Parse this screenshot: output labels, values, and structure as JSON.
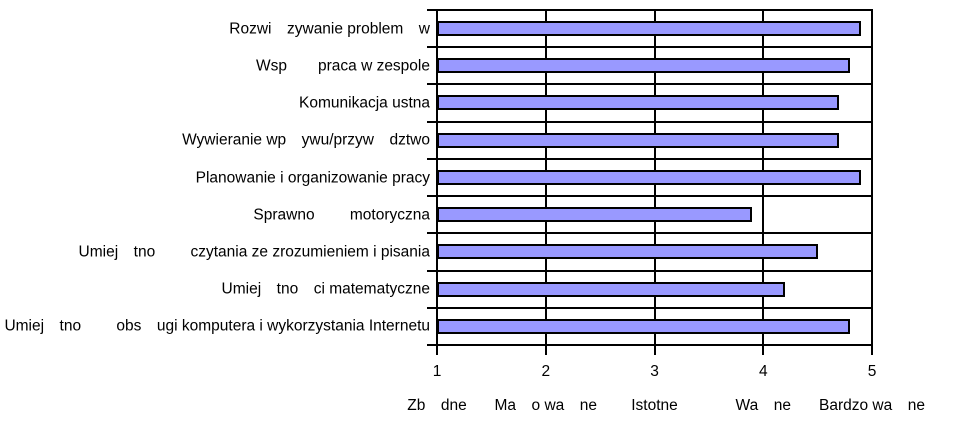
{
  "chart_data": {
    "type": "bar",
    "orientation": "horizontal",
    "title": "",
    "xlabel": "",
    "ylabel": "",
    "xlim": [
      1,
      5
    ],
    "grid": true,
    "legend": "none",
    "bar_color": "#9999FF",
    "bar_border_color": "#000000",
    "axis_color": "#000000",
    "background_color": "#FFFFFF",
    "categories": [
      "Rozwi zywanie problem w",
      "Wsp  praca w zespole",
      "Komunikacja ustna",
      "Wywieranie wp ywu/przyw dztwo",
      "Planowanie i organizowanie pracy",
      "Sprawno   motoryczna",
      "Umiej tno   czytania ze zrozumieniem i pisania",
      "Umiej tno ci matematyczne",
      "Umiej tno   obs ugi komputera i wykorzystania Internetu"
    ],
    "values": [
      4.9,
      4.8,
      4.7,
      4.7,
      4.9,
      3.9,
      4.5,
      4.2,
      4.8
    ],
    "x_ticks": [
      1,
      2,
      3,
      4,
      5
    ],
    "x_tick_labels": [
      "1",
      "2",
      "3",
      "4",
      "5"
    ],
    "x_tick_captions": [
      "Zb dne",
      "Ma o wa ne",
      "Istotne",
      "Wa ne",
      "Bardzo wa ne"
    ]
  }
}
